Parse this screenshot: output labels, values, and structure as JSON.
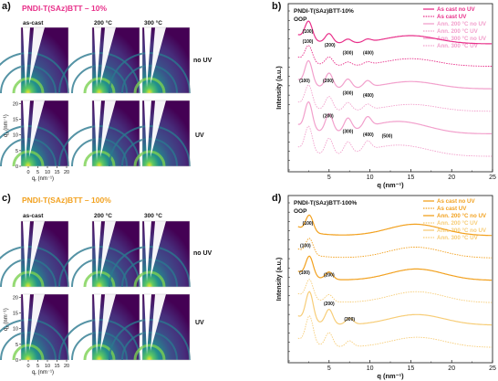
{
  "panels": {
    "a": {
      "letter": "a)",
      "title": "PNDI-T(SAz)BTT – 10%",
      "col_labels": [
        "as-cast",
        "200 °C",
        "300 °C"
      ],
      "row_labels": [
        "no UV",
        "UV"
      ],
      "yaxis_label": "q",
      "yaxis_sub": "z",
      "yaxis_unit": " (nm⁻¹)",
      "xaxis_label": "q",
      "xaxis_sub": "r",
      "xaxis_unit": " (nm⁻¹)",
      "yticks": [
        "0",
        "5",
        "10",
        "15",
        "20"
      ],
      "xticks": [
        "0",
        "5",
        "10",
        "15",
        "20"
      ]
    },
    "c": {
      "letter": "c)",
      "title": "PNDI-T(SAz)BTT – 100%",
      "col_labels": [
        "as-cast",
        "200 °C",
        "300 °C"
      ],
      "row_labels": [
        "no UV",
        "UV"
      ],
      "yaxis_label": "q",
      "yaxis_sub": "z",
      "yaxis_unit": " (nm⁻¹)",
      "xaxis_label": "q",
      "xaxis_sub": "r",
      "xaxis_unit": " (nm⁻¹)",
      "yticks": [
        "0",
        "5",
        "10",
        "15",
        "20"
      ],
      "xticks": [
        "0",
        "5",
        "10",
        "15",
        "20"
      ]
    },
    "b": {
      "letter": "b)"
    },
    "d": {
      "letter": "d)"
    }
  },
  "colors": {
    "pink_solid": "#e8308a",
    "pink_light": "#f2a0cc",
    "orange_solid": "#f2a11f",
    "orange_light": "#f7cd78",
    "heat_bg": "#440154"
  },
  "chart_data": [
    {
      "type": "line",
      "id": "b",
      "title": "PNDI-T(SAz)BTT-10%",
      "subtitle": "OOP",
      "xlabel": "q (nm⁻¹)",
      "ylabel": "Intensity (a.u.)",
      "xlim": [
        0,
        25
      ],
      "xticks": [
        5,
        10,
        15,
        20,
        25
      ],
      "yscale": "log",
      "legend_position": "top-right",
      "series": [
        {
          "name": "As cast no UV",
          "color": "#e8308a",
          "dash": false,
          "offset": 0,
          "peaks": [
            [
              2.5,
              1.0
            ],
            [
              5.0,
              0.5
            ],
            [
              7.3,
              0.22
            ],
            [
              9.7,
              0.15
            ],
            [
              15.0,
              0.45
            ]
          ]
        },
        {
          "name": "As cast UV",
          "color": "#e8308a",
          "dash": true,
          "offset": 1,
          "peaks": [
            [
              2.5,
              0.9
            ],
            [
              5.0,
              0.45
            ],
            [
              7.3,
              0.2
            ],
            [
              9.7,
              0.14
            ],
            [
              15.0,
              0.42
            ]
          ]
        },
        {
          "name": "Ann. 200 °C no UV",
          "color": "#f2a0cc",
          "dash": false,
          "offset": 2,
          "peaks": [
            [
              2.5,
              1.3
            ],
            [
              5.0,
              0.8
            ],
            [
              7.3,
              0.5
            ],
            [
              9.7,
              0.35
            ],
            [
              15.0,
              0.4
            ]
          ]
        },
        {
          "name": "Ann. 200 °C UV",
          "color": "#f2a0cc",
          "dash": true,
          "offset": 3,
          "peaks": [
            [
              2.5,
              1.2
            ],
            [
              5.0,
              0.75
            ],
            [
              7.3,
              0.45
            ],
            [
              9.7,
              0.3
            ],
            [
              15.0,
              0.38
            ]
          ]
        },
        {
          "name": "Ann. 300 °C no UV",
          "color": "#f2a0cc",
          "dash": false,
          "offset": 4,
          "peaks": [
            [
              2.5,
              1.5
            ],
            [
              5.0,
              1.0
            ],
            [
              7.3,
              0.7
            ],
            [
              9.7,
              0.55
            ],
            [
              12.1,
              0.4
            ],
            [
              15.0,
              0.35
            ]
          ]
        },
        {
          "name": "Ann. 300 °C UV",
          "color": "#f2a0cc",
          "dash": true,
          "offset": 5,
          "peaks": [
            [
              2.5,
              1.4
            ],
            [
              5.0,
              0.9
            ],
            [
              7.3,
              0.65
            ],
            [
              9.7,
              0.5
            ],
            [
              12.1,
              0.35
            ],
            [
              15.0,
              0.33
            ]
          ]
        }
      ],
      "annotations": [
        {
          "text": "(100)",
          "x": 2.4,
          "row": 0
        },
        {
          "text": "(200)",
          "x": 5.1,
          "row": 0.6
        },
        {
          "text": "(300)",
          "x": 7.3,
          "row": 0.95
        },
        {
          "text": "(400)",
          "x": 9.8,
          "row": 0.95
        },
        {
          "text": "(100)",
          "x": 2.4,
          "row": 0.45
        },
        {
          "text": "(100)",
          "x": 2.0,
          "row": 2.2
        },
        {
          "text": "(200)",
          "x": 4.9,
          "row": 2.2
        },
        {
          "text": "(300)",
          "x": 7.3,
          "row": 2.75
        },
        {
          "text": "(400)",
          "x": 9.8,
          "row": 2.85
        },
        {
          "text": "(200)",
          "x": 4.9,
          "row": 3.75
        },
        {
          "text": "(300)",
          "x": 7.3,
          "row": 4.45
        },
        {
          "text": "(400)",
          "x": 9.8,
          "row": 4.6
        },
        {
          "text": "(500)",
          "x": 12.1,
          "row": 4.65
        }
      ]
    },
    {
      "type": "line",
      "id": "d",
      "title": "PNDI-T(SAz)BTT-100%",
      "subtitle": "OOP",
      "xlabel": "q (nm⁻¹)",
      "ylabel": "Intensity (a.u.)",
      "xlim": [
        0,
        25
      ],
      "xticks": [
        5,
        10,
        15,
        20,
        25
      ],
      "yscale": "log",
      "legend_position": "top-right",
      "series": [
        {
          "name": "As cast no UV",
          "color": "#f2a11f",
          "dash": false,
          "offset": 0,
          "peaks": [
            [
              2.6,
              0.9
            ],
            [
              15.0,
              0.45
            ],
            [
              16.8,
              0.2
            ]
          ]
        },
        {
          "name": "As cast UV",
          "color": "#f2a11f",
          "dash": true,
          "offset": 1,
          "peaks": [
            [
              2.6,
              0.85
            ],
            [
              15.0,
              0.42
            ],
            [
              16.8,
              0.2
            ]
          ]
        },
        {
          "name": "Ann. 200 °C no UV",
          "color": "#f2a11f",
          "dash": false,
          "offset": 2,
          "peaks": [
            [
              2.6,
              1.1
            ],
            [
              5.0,
              0.4
            ],
            [
              15.0,
              0.4
            ],
            [
              16.8,
              0.25
            ]
          ]
        },
        {
          "name": "Ann. 200 °C UV",
          "color": "#f7cd78",
          "dash": true,
          "offset": 3,
          "peaks": [
            [
              2.6,
              1.05
            ],
            [
              5.0,
              0.38
            ],
            [
              15.0,
              0.38
            ],
            [
              16.8,
              0.25
            ]
          ]
        },
        {
          "name": "Ann. 300 °C no UV",
          "color": "#f7cd78",
          "dash": false,
          "offset": 4,
          "peaks": [
            [
              2.6,
              1.6
            ],
            [
              5.0,
              0.8
            ],
            [
              7.5,
              0.35
            ],
            [
              15.0,
              0.35
            ],
            [
              16.8,
              0.25
            ]
          ]
        },
        {
          "name": "Ann. 300 °C UV",
          "color": "#f7cd78",
          "dash": true,
          "offset": 5,
          "peaks": [
            [
              2.6,
              1.5
            ],
            [
              5.0,
              0.75
            ],
            [
              7.5,
              0.32
            ],
            [
              15.0,
              0.33
            ],
            [
              16.8,
              0.25
            ]
          ]
        }
      ],
      "annotations": [
        {
          "text": "(100)",
          "x": 2.4,
          "row": 0
        },
        {
          "text": "(100)",
          "x": 2.1,
          "row": 1.0
        },
        {
          "text": "(100)",
          "x": 2.0,
          "row": 2.2
        },
        {
          "text": "(200)",
          "x": 5.0,
          "row": 2.3
        },
        {
          "text": "(200)",
          "x": 5.0,
          "row": 3.6
        },
        {
          "text": "(300)",
          "x": 7.5,
          "row": 4.3
        }
      ]
    }
  ]
}
